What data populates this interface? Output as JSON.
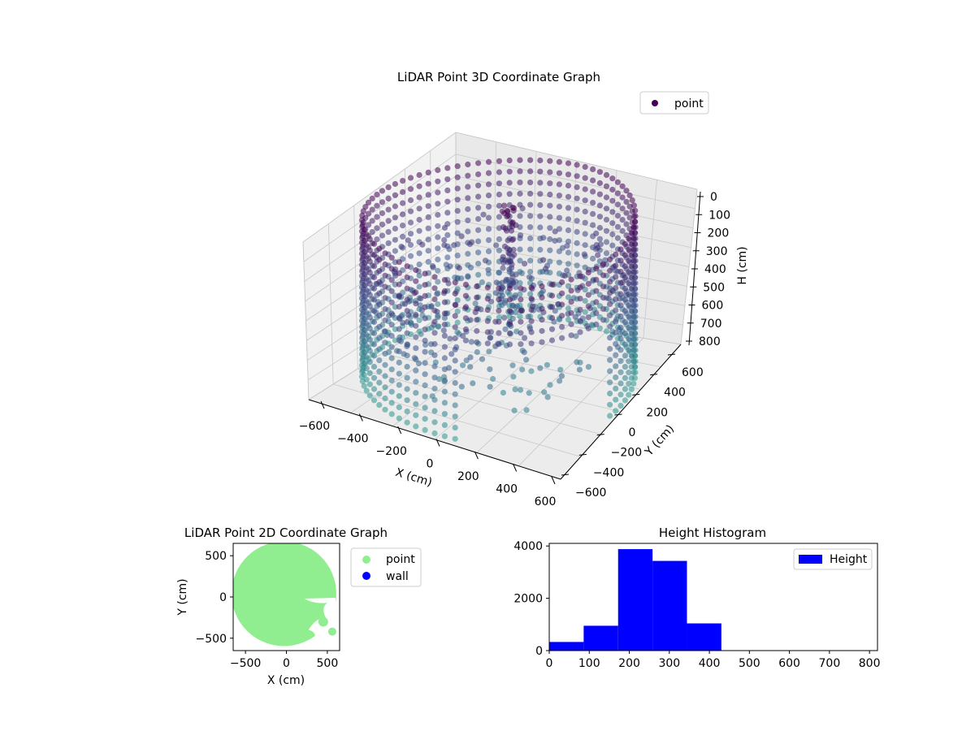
{
  "chart_data": [
    {
      "type": "scatter",
      "title": "LiDAR Point 3D Coordinate Graph",
      "xlabel": "X (cm)",
      "ylabel": "Y (cm)",
      "zlabel": "H (cm)",
      "xticks": [
        "−600",
        "−400",
        "−200",
        "0",
        "200",
        "400",
        "600"
      ],
      "yticks": [
        "−600",
        "−400",
        "−200",
        "0",
        "200",
        "400",
        "600"
      ],
      "zticks": [
        "0",
        "100",
        "200",
        "300",
        "400",
        "500",
        "600",
        "700",
        "800"
      ],
      "xlim": [
        -600,
        600
      ],
      "ylim": [
        -600,
        600
      ],
      "zlim": [
        0,
        800
      ],
      "z_inverted": true,
      "legend": [
        "point"
      ],
      "legend_position": "top-right",
      "grid": true,
      "colormap": "viridis",
      "description_of_data": "Cylindrical wall of points at radius ~600 cm spanning heights ~0-800 cm, with an opening on the near side, a central vertical column and scattered interior points.",
      "series": [
        {
          "name": "point",
          "wall_radius": 600,
          "height_range": [
            0,
            800
          ],
          "opening_angle_range_deg": [
            -80,
            -10
          ],
          "color_start": "#440154",
          "color_end": "#2a9d8f"
        }
      ]
    },
    {
      "type": "scatter",
      "title": "LiDAR Point 2D Coordinate Graph",
      "xlabel": "X (cm)",
      "ylabel": "Y (cm)",
      "xticks": [
        "−500",
        "0",
        "500"
      ],
      "yticks": [
        "500",
        "0",
        "−500"
      ],
      "xlim": [
        -650,
        650
      ],
      "ylim": [
        -650,
        650
      ],
      "legend": [
        "point",
        "wall"
      ],
      "legend_position": "outside-right",
      "series": [
        {
          "name": "point",
          "color": "#90ee90",
          "shape": "filled disk radius ~600"
        },
        {
          "name": "wall",
          "color": "#0000ff"
        }
      ]
    },
    {
      "type": "bar",
      "title": "Height Histogram",
      "xlabel": "",
      "ylabel": "",
      "xticks": [
        "0",
        "100",
        "200",
        "300",
        "400",
        "500",
        "600",
        "700",
        "800"
      ],
      "yticks": [
        "0",
        "2000",
        "4000"
      ],
      "xlim": [
        0,
        820
      ],
      "ylim": [
        0,
        4100
      ],
      "legend": [
        "Height"
      ],
      "legend_position": "top-right",
      "color": "#0000ff",
      "bins": [
        {
          "x0": 0,
          "x1": 86,
          "value": 330
        },
        {
          "x0": 86,
          "x1": 172,
          "value": 950
        },
        {
          "x0": 172,
          "x1": 258,
          "value": 3880
        },
        {
          "x0": 258,
          "x1": 344,
          "value": 3430
        },
        {
          "x0": 344,
          "x1": 430,
          "value": 1040
        },
        {
          "x0": 430,
          "x1": 516,
          "value": 0
        },
        {
          "x0": 516,
          "x1": 602,
          "value": 0
        },
        {
          "x0": 602,
          "x1": 688,
          "value": 0
        },
        {
          "x0": 688,
          "x1": 774,
          "value": 0
        }
      ]
    }
  ]
}
